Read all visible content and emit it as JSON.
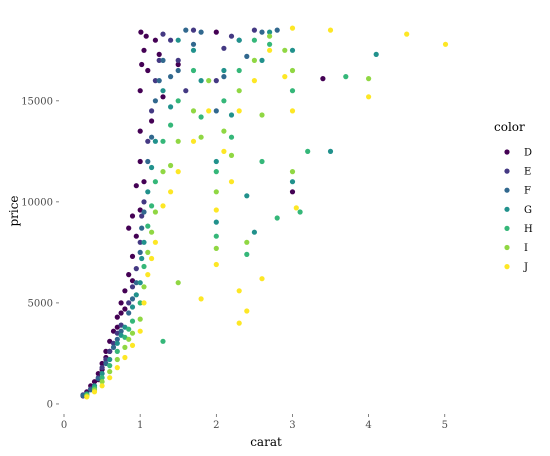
{
  "chart_data": {
    "type": "scatter",
    "title": "",
    "xlabel": "carat",
    "ylabel": "price",
    "xlim": [
      0,
      5.2
    ],
    "ylim": [
      -200,
      19000
    ],
    "x_ticks": [
      0,
      1,
      2,
      3,
      4,
      5
    ],
    "y_ticks": [
      0,
      5000,
      10000,
      15000
    ],
    "x_tick_labels": [
      "0",
      "1",
      "2",
      "3",
      "4",
      "5"
    ],
    "y_tick_labels": [
      "0",
      "5000",
      "10000",
      "15000"
    ],
    "grid": false,
    "legend": {
      "title": "color",
      "position": "right"
    },
    "series": [
      {
        "name": "D",
        "color": "#440154",
        "points": [
          [
            0.25,
            400
          ],
          [
            0.3,
            600
          ],
          [
            0.35,
            900
          ],
          [
            0.4,
            1100
          ],
          [
            0.45,
            1500
          ],
          [
            0.5,
            2000
          ],
          [
            0.55,
            2600
          ],
          [
            0.6,
            3100
          ],
          [
            0.65,
            3600
          ],
          [
            0.7,
            4300
          ],
          [
            0.75,
            5000
          ],
          [
            0.8,
            5600
          ],
          [
            0.85,
            6400
          ],
          [
            0.9,
            7300
          ],
          [
            0.95,
            8300
          ],
          [
            1.0,
            9600
          ],
          [
            1.0,
            12000
          ],
          [
            1.0,
            15500
          ],
          [
            1.01,
            18400
          ],
          [
            1.05,
            17500
          ],
          [
            1.1,
            16500
          ],
          [
            1.15,
            14000
          ],
          [
            1.2,
            18000
          ],
          [
            0.9,
            9300
          ],
          [
            0.85,
            8700
          ],
          [
            0.95,
            10800
          ],
          [
            1.0,
            13500
          ],
          [
            1.02,
            16800
          ],
          [
            1.08,
            18200
          ],
          [
            0.6,
            2600
          ],
          [
            0.7,
            3800
          ],
          [
            0.5,
            1700
          ],
          [
            0.8,
            4700
          ],
          [
            0.9,
            6100
          ],
          [
            0.45,
            1200
          ],
          [
            1.5,
            16800
          ],
          [
            1.3,
            15200
          ],
          [
            2.0,
            18400
          ],
          [
            3.0,
            10500
          ],
          [
            3.4,
            16100
          ],
          [
            0.75,
            4500
          ],
          [
            1.05,
            11000
          ],
          [
            1.25,
            17300
          ],
          [
            0.55,
            2300
          ]
        ]
      },
      {
        "name": "E",
        "color": "#443983",
        "points": [
          [
            0.25,
            450
          ],
          [
            0.35,
            750
          ],
          [
            0.45,
            1300
          ],
          [
            0.55,
            2200
          ],
          [
            0.65,
            3000
          ],
          [
            0.75,
            3900
          ],
          [
            0.85,
            5000
          ],
          [
            0.95,
            6700
          ],
          [
            1.0,
            8000
          ],
          [
            1.05,
            10000
          ],
          [
            1.1,
            13000
          ],
          [
            1.2,
            16000
          ],
          [
            1.3,
            18300
          ],
          [
            1.5,
            17000
          ],
          [
            1.7,
            18500
          ],
          [
            2.0,
            16000
          ],
          [
            2.2,
            18200
          ],
          [
            0.7,
            3500
          ],
          [
            0.9,
            5800
          ],
          [
            1.02,
            9300
          ],
          [
            1.15,
            14500
          ],
          [
            1.4,
            18000
          ],
          [
            1.6,
            15500
          ],
          [
            2.1,
            17600
          ],
          [
            2.5,
            18500
          ],
          [
            0.5,
            1800
          ],
          [
            0.6,
            2600
          ],
          [
            1.25,
            17000
          ]
        ]
      },
      {
        "name": "F",
        "color": "#31688e",
        "points": [
          [
            0.25,
            420
          ],
          [
            0.35,
            700
          ],
          [
            0.45,
            1250
          ],
          [
            0.55,
            2000
          ],
          [
            0.65,
            2800
          ],
          [
            0.75,
            3600
          ],
          [
            0.85,
            4500
          ],
          [
            0.95,
            6000
          ],
          [
            1.0,
            7500
          ],
          [
            1.05,
            9500
          ],
          [
            1.1,
            12000
          ],
          [
            1.2,
            15000
          ],
          [
            1.3,
            17000
          ],
          [
            1.5,
            16500
          ],
          [
            1.6,
            18500
          ],
          [
            1.8,
            18400
          ],
          [
            2.0,
            14500
          ],
          [
            2.3,
            18000
          ],
          [
            2.6,
            18400
          ],
          [
            2.8,
            18500
          ],
          [
            1.02,
            8700
          ],
          [
            1.15,
            13200
          ],
          [
            1.4,
            16200
          ],
          [
            1.7,
            17800
          ],
          [
            2.1,
            16200
          ],
          [
            0.7,
            3200
          ],
          [
            0.9,
            5200
          ],
          [
            2.4,
            17200
          ],
          [
            1.25,
            16000
          ]
        ]
      },
      {
        "name": "G",
        "color": "#21918c",
        "points": [
          [
            0.3,
            500
          ],
          [
            0.4,
            900
          ],
          [
            0.5,
            1500
          ],
          [
            0.6,
            2200
          ],
          [
            0.7,
            3000
          ],
          [
            0.8,
            3800
          ],
          [
            0.9,
            4800
          ],
          [
            1.0,
            6000
          ],
          [
            1.05,
            8000
          ],
          [
            1.1,
            10500
          ],
          [
            1.2,
            13000
          ],
          [
            1.3,
            15500
          ],
          [
            1.5,
            18000
          ],
          [
            1.7,
            17500
          ],
          [
            2.0,
            12000
          ],
          [
            2.1,
            16500
          ],
          [
            2.3,
            18000
          ],
          [
            2.6,
            17000
          ],
          [
            2.7,
            18400
          ],
          [
            3.0,
            17500
          ],
          [
            3.5,
            12500
          ],
          [
            4.1,
            17300
          ],
          [
            2.0,
            9000
          ],
          [
            2.5,
            8500
          ],
          [
            3.0,
            11000
          ],
          [
            1.02,
            7200
          ],
          [
            1.15,
            11700
          ],
          [
            1.4,
            14700
          ],
          [
            1.8,
            16000
          ],
          [
            2.2,
            14300
          ],
          [
            0.75,
            3400
          ],
          [
            0.95,
            5400
          ],
          [
            2.4,
            10300
          ]
        ]
      },
      {
        "name": "H",
        "color": "#35b779",
        "points": [
          [
            0.3,
            450
          ],
          [
            0.4,
            800
          ],
          [
            0.5,
            1300
          ],
          [
            0.6,
            1900
          ],
          [
            0.7,
            2600
          ],
          [
            0.8,
            3300
          ],
          [
            0.9,
            4100
          ],
          [
            1.0,
            5000
          ],
          [
            1.05,
            6800
          ],
          [
            1.1,
            8800
          ],
          [
            1.2,
            11000
          ],
          [
            1.3,
            13000
          ],
          [
            1.5,
            15000
          ],
          [
            1.7,
            16500
          ],
          [
            2.0,
            11500
          ],
          [
            2.1,
            15000
          ],
          [
            2.3,
            16500
          ],
          [
            2.5,
            18000
          ],
          [
            2.7,
            17800
          ],
          [
            3.0,
            15500
          ],
          [
            3.2,
            12500
          ],
          [
            3.7,
            16200
          ],
          [
            2.0,
            8300
          ],
          [
            2.4,
            7400
          ],
          [
            2.8,
            9200
          ],
          [
            3.1,
            9500
          ],
          [
            1.3,
            3100
          ],
          [
            1.15,
            9800
          ],
          [
            1.4,
            13800
          ],
          [
            1.8,
            14200
          ],
          [
            2.2,
            13200
          ],
          [
            0.85,
            3700
          ],
          [
            2.6,
            12000
          ]
        ]
      },
      {
        "name": "I",
        "color": "#90d743",
        "points": [
          [
            0.3,
            400
          ],
          [
            0.4,
            700
          ],
          [
            0.5,
            1100
          ],
          [
            0.6,
            1600
          ],
          [
            0.7,
            2200
          ],
          [
            0.8,
            2800
          ],
          [
            0.9,
            3500
          ],
          [
            1.0,
            4200
          ],
          [
            1.05,
            5800
          ],
          [
            1.1,
            7500
          ],
          [
            1.2,
            9500
          ],
          [
            1.3,
            11500
          ],
          [
            1.5,
            13000
          ],
          [
            1.7,
            14500
          ],
          [
            1.9,
            16000
          ],
          [
            2.0,
            10500
          ],
          [
            2.1,
            13500
          ],
          [
            2.3,
            15500
          ],
          [
            2.5,
            17000
          ],
          [
            2.7,
            18200
          ],
          [
            3.0,
            16500
          ],
          [
            4.0,
            16100
          ],
          [
            2.0,
            7700
          ],
          [
            2.4,
            8000
          ],
          [
            3.0,
            11500
          ],
          [
            1.5,
            6000
          ],
          [
            1.15,
            8500
          ],
          [
            1.4,
            11800
          ],
          [
            1.8,
            13200
          ],
          [
            2.2,
            12300
          ],
          [
            0.85,
            3200
          ],
          [
            2.6,
            14300
          ],
          [
            2.9,
            17500
          ]
        ]
      },
      {
        "name": "J",
        "color": "#fde725",
        "points": [
          [
            0.3,
            350
          ],
          [
            0.4,
            600
          ],
          [
            0.5,
            900
          ],
          [
            0.6,
            1300
          ],
          [
            0.7,
            1800
          ],
          [
            0.8,
            2300
          ],
          [
            0.9,
            2900
          ],
          [
            1.0,
            3600
          ],
          [
            1.05,
            5000
          ],
          [
            1.1,
            6400
          ],
          [
            1.2,
            8000
          ],
          [
            1.3,
            9800
          ],
          [
            1.5,
            11500
          ],
          [
            1.7,
            13000
          ],
          [
            1.9,
            14500
          ],
          [
            2.0,
            9600
          ],
          [
            2.1,
            12500
          ],
          [
            2.3,
            14500
          ],
          [
            2.5,
            16000
          ],
          [
            2.7,
            17500
          ],
          [
            3.0,
            14500
          ],
          [
            3.05,
            9700
          ],
          [
            3.5,
            18500
          ],
          [
            4.0,
            15200
          ],
          [
            4.5,
            18300
          ],
          [
            5.01,
            17800
          ],
          [
            2.0,
            6900
          ],
          [
            2.3,
            5600
          ],
          [
            2.6,
            6200
          ],
          [
            2.3,
            4000
          ],
          [
            2.4,
            4600
          ],
          [
            1.8,
            5200
          ],
          [
            1.15,
            7200
          ],
          [
            1.4,
            10500
          ],
          [
            2.2,
            11000
          ],
          [
            2.9,
            16200
          ],
          [
            3.0,
            18600
          ]
        ]
      }
    ]
  }
}
